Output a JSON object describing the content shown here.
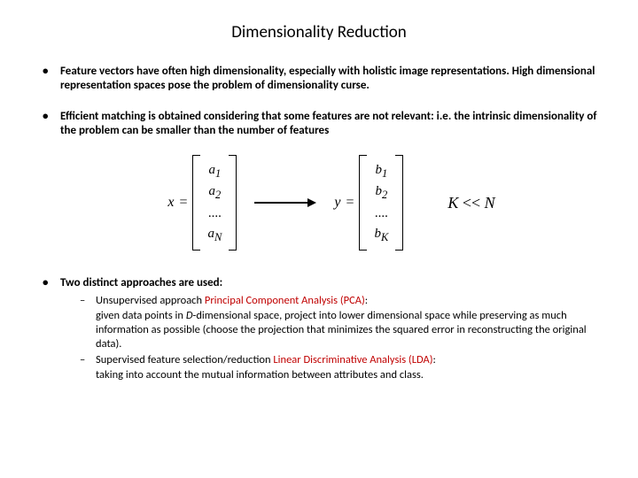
{
  "title": "Dimensionality Reduction",
  "bullets": {
    "b1": "Feature vectors have often high dimensionality, especially with holistic image representations. High dimensional representation spaces pose the problem of dimensionality curse.",
    "b2": "Efficient matching is obtained considering that some features are not relevant: i.e. the intrinsic dimensionality of the problem can be smaller than the number of features",
    "b3": "Two distinct approaches are used:"
  },
  "equation": {
    "x_label": "x",
    "y_label": "y",
    "eq": "=",
    "x_rows": [
      "a",
      "a",
      "....",
      "a"
    ],
    "x_subs": [
      "1",
      "2",
      "",
      "N"
    ],
    "y_rows": [
      "b",
      "b",
      "....",
      "b"
    ],
    "y_subs": [
      "1",
      "2",
      "",
      "K"
    ],
    "relation_lhs": "K",
    "relation_op": " << ",
    "relation_rhs": "N"
  },
  "sub": {
    "s1_lead": "Unsupervised approach ",
    "s1_red": "Principal Component Analysis (PCA)",
    "s1_colon": ":",
    "s1_body_a": "given data points in ",
    "s1_body_d": "D",
    "s1_body_b": "-dimensional space, project into lower dimensional space while preserving as much information as possible (choose the projection that minimizes the squared error in reconstructing the original data).",
    "s2_lead": "Supervised feature selection/reduction ",
    "s2_red": "Linear Discriminative Analysis (LDA)",
    "s2_colon": ":",
    "s2_body": "taking into account the mutual information between attributes and class."
  }
}
